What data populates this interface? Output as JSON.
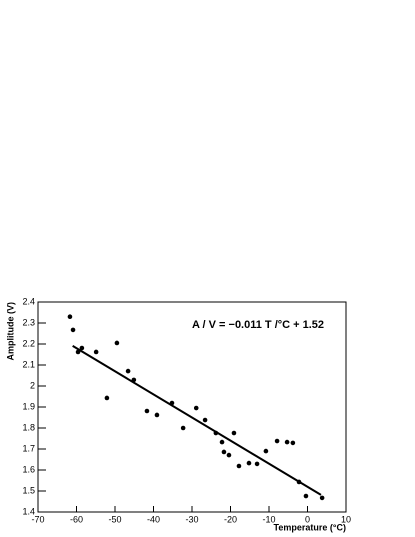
{
  "chart_data": {
    "type": "scatter",
    "annotation": "A / V = −0.011 T /°C + 1.52",
    "x_label": "Temperature (°C)",
    "y_label": "Amplitude (V)",
    "xlim": [
      -70,
      10
    ],
    "xticks": [
      -70,
      -60,
      -50,
      -40,
      -30,
      -20,
      -10,
      0,
      10
    ],
    "ylim": [
      1.4,
      2.4
    ],
    "yticks": [
      1.4,
      1.5,
      1.6,
      1.7,
      1.8,
      1.9,
      2,
      2.1,
      2.2,
      2.3,
      2.4
    ],
    "color": "#000000",
    "points": {
      "x": [
        -61.7,
        -60.9,
        -59.6,
        -58.6,
        -54.9,
        -49.5,
        -52.1,
        -46.6,
        -45.1,
        -41.7,
        -39.1,
        -35.2,
        -32.3,
        -28.9,
        -26.6,
        -23.8,
        -22.2,
        -21.7,
        -20.4,
        -19.1,
        -17.8,
        -15.2,
        -13.1,
        -10.8,
        -7.9,
        -5.3,
        -3.8,
        -2.2,
        -0.4,
        3.8
      ],
      "y": [
        2.33,
        2.267,
        2.162,
        2.181,
        2.162,
        2.205,
        1.943,
        2.071,
        2.029,
        1.881,
        1.862,
        1.919,
        1.8,
        1.895,
        1.838,
        1.776,
        1.733,
        1.686,
        1.671,
        1.776,
        1.619,
        1.633,
        1.629,
        1.69,
        1.738,
        1.733,
        1.729,
        1.543,
        1.476,
        1.467
      ]
    },
    "fit_line": {
      "x": [
        -61,
        3.5
      ],
      "y": [
        2.191,
        1.4815
      ]
    }
  }
}
